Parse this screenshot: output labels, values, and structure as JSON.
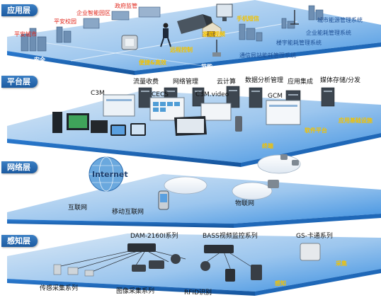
{
  "layers": {
    "application": {
      "title": "应用层",
      "labels": [
        "政府监管",
        "企业智能园区",
        "平安校园",
        "平安城市",
        "手机短信",
        "家庭视频",
        "城市能源管理系统",
        "企业能耗管理系统",
        "楼宇能耗管理系统",
        "通信局站能耗管理系统",
        "便捷&高效",
        "远程控制",
        "安全",
        "节能"
      ]
    },
    "platform": {
      "title": "平台层",
      "labels": [
        "流量收费",
        "网络管理",
        "云计算",
        "数据分析管理",
        "应用集成",
        "媒体存储/分发",
        "C3M",
        "CECS",
        "C3M.video",
        "GCM",
        "软件平台",
        "应用基础设施",
        "终端"
      ]
    },
    "network": {
      "title": "网络层",
      "labels": [
        "Internet",
        "互联网",
        "移动互联网",
        "物联网"
      ]
    },
    "perception": {
      "title": "感知层",
      "labels": [
        "DAM-2160I系列",
        "BASS视频监控系列",
        "GS-卡通系列",
        "传感采集系列",
        "图像采集系列",
        "RFID识别",
        "感知",
        "采集"
      ]
    }
  },
  "colors": {
    "slab_top": "#2f8fe0",
    "slab_side": "#1a5fa8",
    "tab": "#1c5aa0",
    "label_red": "#e0261b",
    "label_yellow": "#f2c200",
    "label_blue": "#1d4e94"
  }
}
